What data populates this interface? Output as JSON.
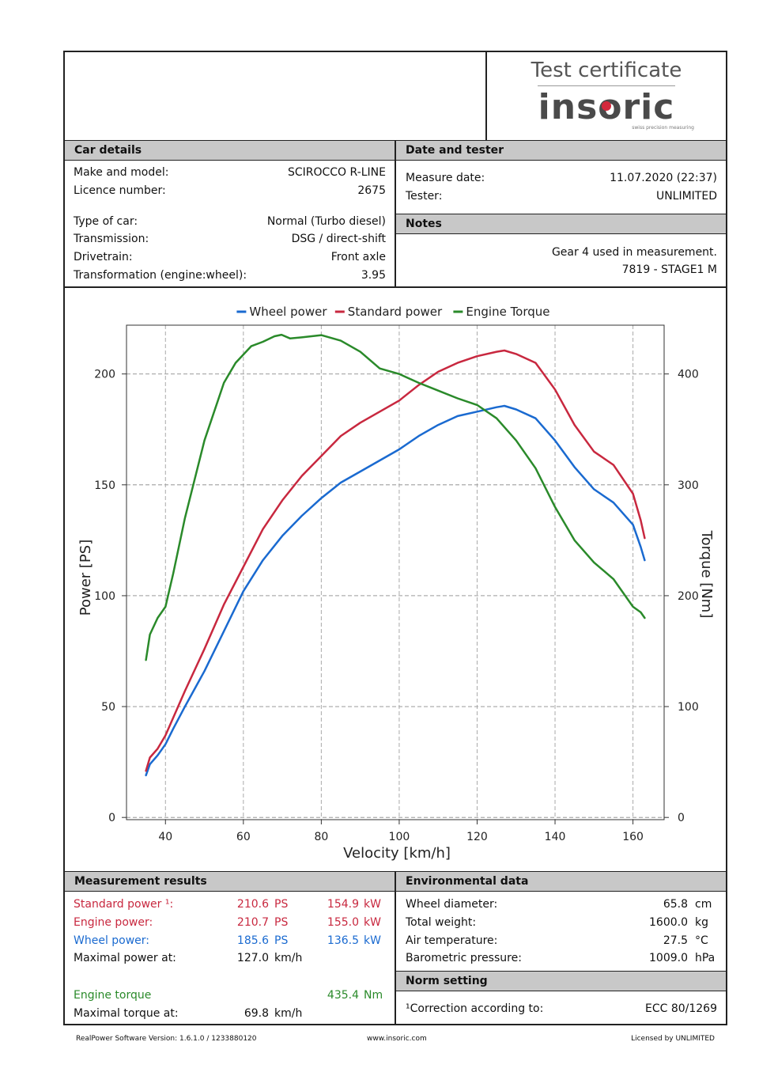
{
  "certificate": {
    "title": "Test certificate",
    "brand": "insoric",
    "brand_tagline": "swiss precision measuring"
  },
  "car_details": {
    "header": "Car details",
    "rows": [
      {
        "label": "Make and model:",
        "value": "SCIROCCO R-LINE"
      },
      {
        "label": "Licence number:",
        "value": "2675"
      },
      {
        "label": "Type of car:",
        "value": "Normal (Turbo diesel)"
      },
      {
        "label": "Transmission:",
        "value": "DSG / direct-shift"
      },
      {
        "label": "Drivetrain:",
        "value": "Front axle"
      },
      {
        "label": "Transformation (engine:wheel):",
        "value": "3.95"
      }
    ]
  },
  "date_tester": {
    "header": "Date and tester",
    "rows": [
      {
        "label": "Measure date:",
        "value": "11.07.2020 (22:37)"
      },
      {
        "label": "Tester:",
        "value": "UNLIMITED"
      }
    ]
  },
  "notes": {
    "header": "Notes",
    "lines": [
      "Gear 4 used in measurement.",
      "7819 - STAGE1 M"
    ]
  },
  "chart_data": {
    "type": "line",
    "xlabel": "Velocity [km/h]",
    "ylabel": "Power [PS]",
    "y2label": "Torque [Nm]",
    "xlim": [
      30,
      168
    ],
    "ylim": [
      -1,
      222
    ],
    "y2lim": [
      -2,
      444
    ],
    "xticks": [
      40,
      60,
      80,
      100,
      120,
      140,
      160
    ],
    "yticks": [
      0,
      50,
      100,
      150,
      200
    ],
    "y2ticks": [
      0,
      100,
      200,
      300,
      400
    ],
    "grid": true,
    "legend_position": "top",
    "series": [
      {
        "name": "Wheel power",
        "axis": "left",
        "color": "#1a6ad0",
        "x": [
          35,
          36,
          38,
          40,
          42,
          45,
          50,
          55,
          60,
          65,
          70,
          75,
          80,
          85,
          90,
          95,
          100,
          105,
          110,
          115,
          120,
          125,
          127,
          130,
          135,
          140,
          145,
          150,
          155,
          160,
          162,
          163
        ],
        "y": [
          19,
          24,
          28,
          33,
          40,
          50,
          66,
          84,
          102,
          116,
          127,
          136,
          144,
          151,
          156,
          161,
          166,
          172,
          177,
          181,
          183,
          185,
          185.6,
          184,
          180,
          170,
          158,
          148,
          142,
          132,
          122,
          116
        ]
      },
      {
        "name": "Standard power",
        "axis": "left",
        "color": "#c8283f",
        "x": [
          35,
          36,
          38,
          40,
          42,
          45,
          50,
          55,
          60,
          65,
          70,
          75,
          80,
          85,
          90,
          95,
          100,
          105,
          110,
          115,
          120,
          125,
          127,
          130,
          135,
          140,
          145,
          150,
          155,
          160,
          162,
          163
        ],
        "y": [
          21,
          27,
          31,
          37,
          45,
          57,
          76,
          96,
          113,
          130,
          143,
          154,
          163,
          172,
          178,
          183,
          188,
          195,
          201,
          205,
          208,
          210,
          210.6,
          209,
          205,
          193,
          177,
          165,
          159,
          146,
          134,
          126
        ]
      },
      {
        "name": "Engine Torque",
        "axis": "right",
        "color": "#2a8a2a",
        "x": [
          35,
          36,
          38,
          40,
          42,
          45,
          50,
          55,
          58,
          62,
          65,
          68,
          69.8,
          72,
          75,
          80,
          85,
          90,
          95,
          100,
          105,
          110,
          115,
          120,
          125,
          130,
          135,
          140,
          145,
          150,
          155,
          160,
          162,
          163
        ],
        "y": [
          142,
          165,
          180,
          190,
          220,
          270,
          340,
          392,
          410,
          425,
          429,
          434,
          435.4,
          432,
          433,
          435,
          430,
          420,
          405,
          400,
          392,
          385,
          378,
          372,
          360,
          340,
          315,
          280,
          250,
          230,
          215,
          190,
          185,
          180
        ]
      }
    ]
  },
  "measurement_results": {
    "header": "Measurement results",
    "standard_power": {
      "label": "Standard power ¹:",
      "ps": "210.6",
      "ps_unit": "PS",
      "kw": "154.9",
      "kw_unit": "kW"
    },
    "engine_power": {
      "label": "Engine power:",
      "ps": "210.7",
      "ps_unit": "PS",
      "kw": "155.0",
      "kw_unit": "kW"
    },
    "wheel_power": {
      "label": "Wheel power:",
      "ps": "185.6",
      "ps_unit": "PS",
      "kw": "136.5",
      "kw_unit": "kW"
    },
    "max_power_at": {
      "label": "Maximal power at:",
      "value": "127.0",
      "unit": "km/h"
    },
    "engine_torque": {
      "label": "Engine torque",
      "value": "435.4",
      "unit": "Nm"
    },
    "max_torque_at": {
      "label": "Maximal torque at:",
      "value": "69.8",
      "unit": "km/h"
    }
  },
  "environmental_data": {
    "header": "Environmental data",
    "rows": [
      {
        "label": "Wheel diameter:",
        "value": "65.8",
        "unit": "cm"
      },
      {
        "label": "Total weight:",
        "value": "1600.0",
        "unit": "kg"
      },
      {
        "label": "Air temperature:",
        "value": "27.5",
        "unit": "°C"
      },
      {
        "label": "Barometric pressure:",
        "value": "1009.0",
        "unit": "hPa"
      }
    ]
  },
  "norm_setting": {
    "header": "Norm setting",
    "label": "¹Correction according to:",
    "value": "ECC 80/1269"
  },
  "footer": {
    "version": "RealPower Software Version: 1.6.1.0 / 1233880120",
    "website": "www.insoric.com",
    "license": "Licensed by UNLIMITED"
  }
}
